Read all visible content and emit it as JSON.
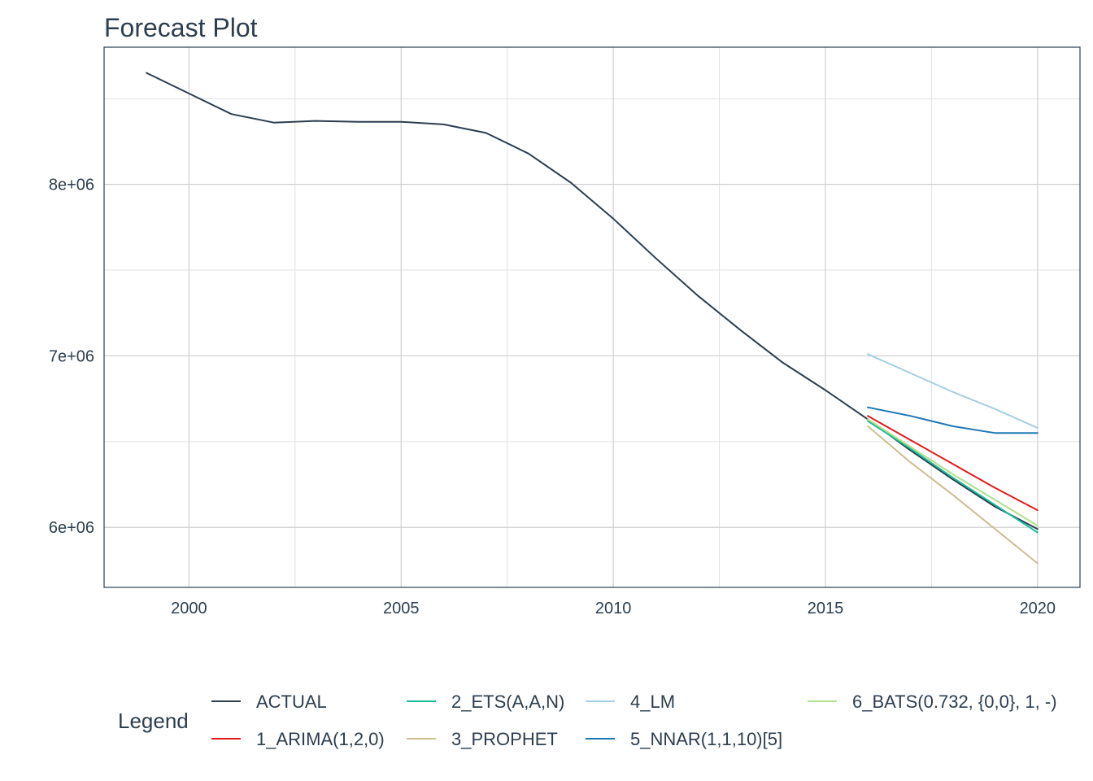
{
  "chart_data": {
    "type": "line",
    "title": "Forecast Plot",
    "xlabel": "",
    "ylabel": "",
    "xlim": [
      1998,
      2021
    ],
    "ylim": [
      5650000,
      8800000
    ],
    "x_ticks": [
      2000,
      2005,
      2010,
      2015,
      2020
    ],
    "x_tick_labels": [
      "2000",
      "2005",
      "2010",
      "2015",
      "2020"
    ],
    "x_minor_ticks": [
      2002.5,
      2007.5,
      2012.5,
      2017.5
    ],
    "y_ticks": [
      6000000,
      7000000,
      8000000
    ],
    "y_tick_labels": [
      "6e+06",
      "7e+06",
      "8e+06"
    ],
    "y_minor_ticks": [
      6500000,
      7500000,
      8500000
    ],
    "grid": true,
    "legend_title": "Legend",
    "legend_position": "bottom",
    "series": [
      {
        "name": "ACTUAL",
        "color": "#2c3e50",
        "x": [
          1999,
          2000,
          2001,
          2002,
          2003,
          2004,
          2005,
          2006,
          2007,
          2008,
          2009,
          2010,
          2011,
          2012,
          2013,
          2014,
          2015,
          2016,
          2017,
          2018,
          2019,
          2020
        ],
        "y": [
          8650000,
          8530000,
          8410000,
          8360000,
          8370000,
          8365000,
          8365000,
          8350000,
          8300000,
          8180000,
          8010000,
          7800000,
          7570000,
          7350000,
          7150000,
          6960000,
          6800000,
          6630000,
          6450000,
          6280000,
          6120000,
          5990000
        ]
      },
      {
        "name": "1_ARIMA(1,2,0)",
        "color": "#e31a1c",
        "x": [
          2016,
          2017,
          2018,
          2019,
          2020
        ],
        "y": [
          6650000,
          6510000,
          6370000,
          6230000,
          6100000
        ]
      },
      {
        "name": "2_ETS(A,A,N)",
        "color": "#18bc9c",
        "x": [
          2016,
          2017,
          2018,
          2019,
          2020
        ],
        "y": [
          6620000,
          6460000,
          6290000,
          6130000,
          5970000
        ]
      },
      {
        "name": "3_PROPHET",
        "color": "#ccbe93",
        "x": [
          2016,
          2017,
          2018,
          2019,
          2020
        ],
        "y": [
          6590000,
          6380000,
          6190000,
          5990000,
          5790000
        ]
      },
      {
        "name": "4_LM",
        "color": "#a6cee3",
        "x": [
          2016,
          2017,
          2018,
          2019,
          2020
        ],
        "y": [
          7010000,
          6900000,
          6790000,
          6690000,
          6580000
        ]
      },
      {
        "name": "5_NNAR(1,1,10)[5]",
        "color": "#1f78b4",
        "x": [
          2016,
          2017,
          2018,
          2019,
          2020
        ],
        "y": [
          6700000,
          6650000,
          6590000,
          6550000,
          6550000
        ]
      },
      {
        "name": "6_BATS(0.732, {0,0}, 1, -)",
        "color": "#b2df8a",
        "x": [
          2016,
          2017,
          2018,
          2019,
          2020
        ],
        "y": [
          6630000,
          6470000,
          6310000,
          6160000,
          6010000
        ]
      }
    ]
  }
}
